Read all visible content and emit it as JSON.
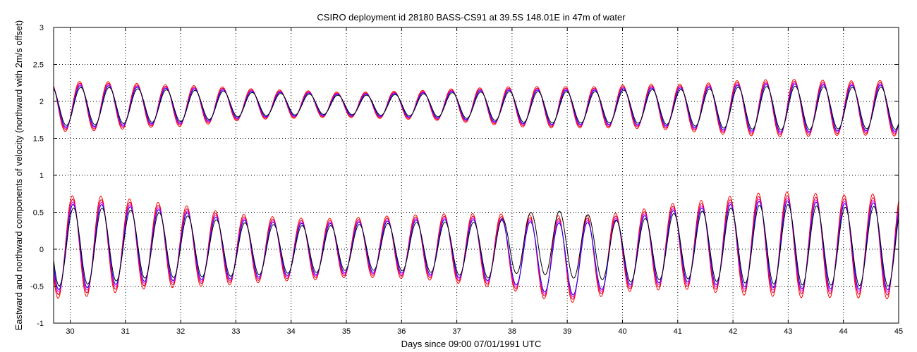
{
  "chart_data": {
    "type": "line",
    "title": "CSIRO deployment id 28180 BASS-CS91 at 39.5S 148.01E in 47m of water",
    "xlabel": "Days since 09:00 07/01/1991 UTC",
    "ylabel": "Eastward  and northward components of velocity  (northward with 2m/s offset)",
    "xlim": [
      29.7,
      45.0
    ],
    "ylim": [
      -1,
      3
    ],
    "xticks": [
      30,
      31,
      32,
      33,
      34,
      35,
      36,
      37,
      38,
      39,
      40,
      41,
      42,
      43,
      44,
      45
    ],
    "yticks": [
      -1,
      -0.5,
      0,
      0.5,
      1,
      1.5,
      2,
      2.5,
      3
    ],
    "ytick_labels": [
      "-1",
      "-0.5",
      "0",
      "0.5",
      "1",
      "1.5",
      "2",
      "2.5",
      "3"
    ],
    "grid": true,
    "series_colors": [
      "#ff0000",
      "#cc0033",
      "#ff00ff",
      "#0000ff",
      "#000000"
    ],
    "tidal_period_days": 0.5175,
    "northward_offset": 2,
    "series": [
      {
        "component": "eastward",
        "color": "#0000ff",
        "x": [
          30.0,
          30.5,
          31.0,
          31.5,
          32.0,
          32.5,
          33.0,
          33.5,
          34.0,
          34.5,
          35.0,
          35.5,
          36.0,
          36.5,
          37.0,
          37.5,
          38.0,
          38.5,
          39.0,
          39.5,
          40.0,
          40.5,
          41.0,
          41.5,
          42.0,
          42.5,
          43.0,
          43.5,
          44.0,
          44.5,
          45.0
        ],
        "amplitude": [
          0.62,
          0.6,
          0.56,
          0.52,
          0.5,
          0.46,
          0.43,
          0.4,
          0.38,
          0.37,
          0.36,
          0.37,
          0.38,
          0.4,
          0.42,
          0.44,
          0.46,
          0.5,
          0.53,
          0.5,
          0.48,
          0.5,
          0.52,
          0.55,
          0.6,
          0.62,
          0.64,
          0.63,
          0.62,
          0.63,
          0.65
        ],
        "mean": [
          0.03,
          0.05,
          0.06,
          0.06,
          0.04,
          0.02,
          0.0,
          0.0,
          0.0,
          0.0,
          0.02,
          0.03,
          0.03,
          0.03,
          0.01,
          -0.01,
          -0.04,
          -0.1,
          -0.14,
          -0.1,
          -0.04,
          0.0,
          0.05,
          0.05,
          0.05,
          0.07,
          0.06,
          0.05,
          0.04,
          0.04,
          0.05
        ]
      },
      {
        "component": "northward",
        "color": "#0000ff",
        "x": [
          30.0,
          30.5,
          31.0,
          31.5,
          32.0,
          32.5,
          33.0,
          33.5,
          34.0,
          34.5,
          35.0,
          35.5,
          36.0,
          36.5,
          37.0,
          37.5,
          38.0,
          38.5,
          39.0,
          39.5,
          40.0,
          40.5,
          41.0,
          41.5,
          42.0,
          42.5,
          43.0,
          43.5,
          44.0,
          44.5,
          45.0
        ],
        "amplitude": [
          0.3,
          0.3,
          0.28,
          0.26,
          0.25,
          0.23,
          0.2,
          0.18,
          0.17,
          0.16,
          0.15,
          0.16,
          0.17,
          0.18,
          0.2,
          0.22,
          0.24,
          0.25,
          0.25,
          0.25,
          0.26,
          0.27,
          0.28,
          0.3,
          0.33,
          0.34,
          0.35,
          0.34,
          0.33,
          0.33,
          0.34
        ],
        "mean": [
          1.93,
          1.94,
          1.94,
          1.94,
          1.94,
          1.95,
          1.96,
          1.96,
          1.96,
          1.96,
          1.95,
          1.95,
          1.95,
          1.95,
          1.95,
          1.94,
          1.93,
          1.92,
          1.92,
          1.92,
          1.93,
          1.93,
          1.92,
          1.91,
          1.91,
          1.91,
          1.91,
          1.91,
          1.91,
          1.91,
          1.91
        ]
      }
    ]
  }
}
